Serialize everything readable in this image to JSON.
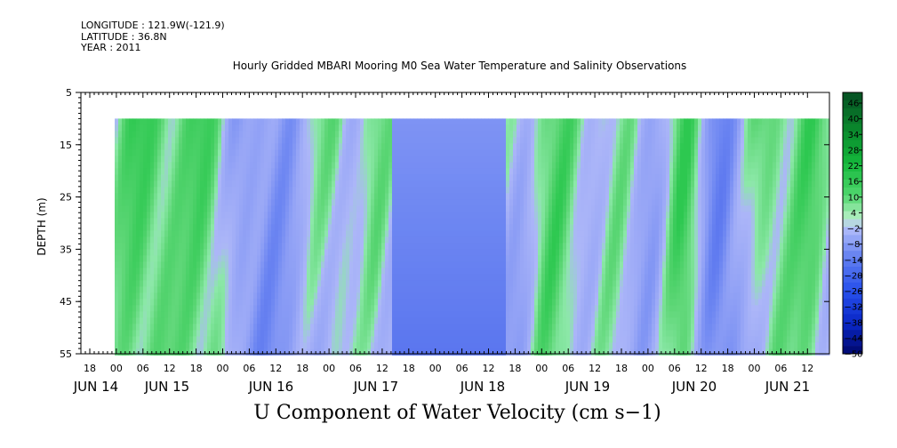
{
  "header": {
    "longitude": "LONGITUDE : 121.9W(-121.9)",
    "latitude": "LATITUDE : 36.8N",
    "year": "YEAR : 2011"
  },
  "chart_data": {
    "type": "heatmap",
    "title": "Hourly Gridded MBARI Mooring M0 Sea Water Temperature and Salinity Observations",
    "xlabel": "U Component of Water Velocity (cm s−1)",
    "ylabel": "DEPTH (m)",
    "y_ticks": [
      "5",
      "15",
      "25",
      "35",
      "45",
      "55"
    ],
    "ylim": [
      5,
      55
    ],
    "y_inverted": true,
    "x_hour_labels": [
      "18",
      "00",
      "06",
      "12",
      "18",
      "00",
      "06",
      "12",
      "18",
      "00",
      "06",
      "12",
      "18",
      "00",
      "06",
      "12",
      "18",
      "00",
      "06",
      "12",
      "18",
      "00",
      "06",
      "12",
      "18",
      "00",
      "06",
      "12",
      "18",
      "00",
      "06",
      "12"
    ],
    "x_day_labels": [
      "JUN 14",
      "JUN 15",
      "JUN 16",
      "JUN 17",
      "JUN 18",
      "JUN 19",
      "JUN 20",
      "JUN 21"
    ],
    "data_depth_range": [
      10,
      55
    ],
    "colorbar": {
      "labels": [
        "46",
        "40",
        "34",
        "28",
        "22",
        "16",
        "10",
        "4",
        "−2",
        "−8",
        "−14",
        "−20",
        "−26",
        "−32",
        "−38",
        "−44",
        "−50"
      ],
      "range": [
        -50,
        49
      ]
    },
    "colors": {
      "strong_positive": "#0a5c2a",
      "positive": "#33cc55",
      "weak_positive": "#8ce8a8",
      "weak_negative": "#a8b4f8",
      "negative": "#6a88f0",
      "strong_negative": "#000a70"
    }
  }
}
